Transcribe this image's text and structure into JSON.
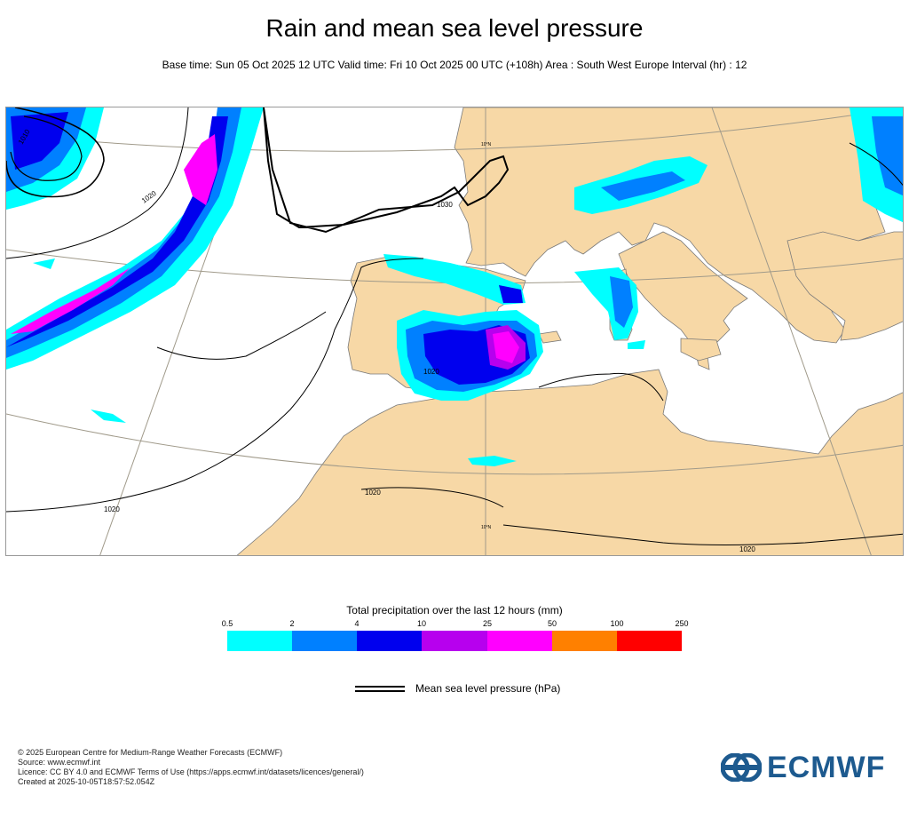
{
  "header": {
    "title": "Rain and mean sea level pressure",
    "subtitle": "Base time: Sun 05 Oct 2025 12 UTC Valid time: Fri 10 Oct 2025 00 UTC (+108h) Area : South West Europe Interval (hr) : 12"
  },
  "map": {
    "isobar_labels": [
      "1010",
      "1020",
      "1030",
      "1020",
      "1020",
      "1020",
      "1020"
    ],
    "graticule_labels": [
      "10°N",
      "10°N"
    ],
    "colors": {
      "land": "#f7d8a6",
      "sea": "#ffffff",
      "isobar": "#000000",
      "border": "#444444"
    }
  },
  "legend": {
    "title": "Total precipitation over the last 12 hours (mm)",
    "ticks": [
      "0.5",
      "2",
      "4",
      "10",
      "25",
      "50",
      "100",
      "250"
    ],
    "colors": [
      "#00ffff",
      "#0080ff",
      "#0000ee",
      "#b700ee",
      "#ff00ff",
      "#ff8000",
      "#ff0000"
    ],
    "pressure_label": "Mean sea level pressure (hPa)"
  },
  "footer": {
    "lines": [
      "© 2025 European Centre for Medium-Range Weather Forecasts (ECMWF)",
      "Source: www.ecmwf.int",
      "Licence: CC BY 4.0 and ECMWF Terms of Use (https://apps.ecmwf.int/datasets/licences/general/)",
      "Created at 2025-10-05T18:57:52.054Z"
    ],
    "logo_text": "ECMWF"
  }
}
